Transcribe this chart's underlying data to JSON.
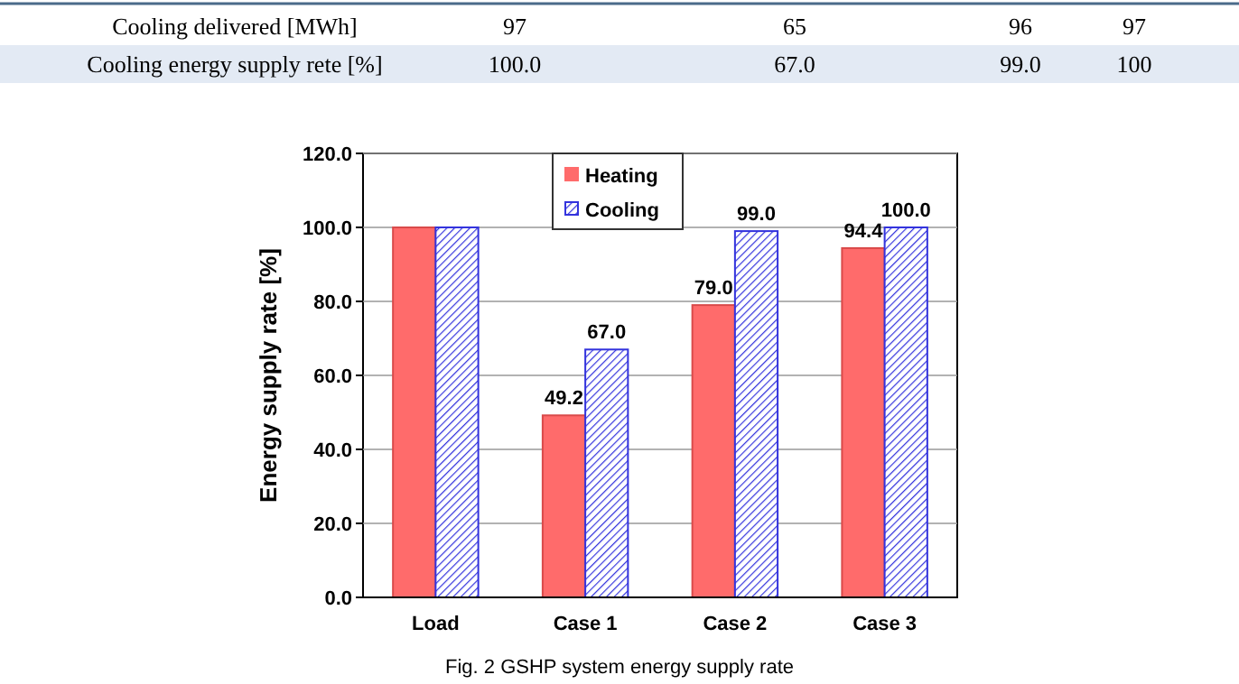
{
  "chart_data": [
    {
      "type": "other",
      "annotations": [
        "Cooling delivered [MWh]",
        "97",
        "65",
        "96",
        "97",
        "Cooling energy supply rete [%]",
        "100.0",
        "67.0",
        "99.0",
        "100"
      ]
    },
    {
      "type": "bar",
      "ylabel": "Energy supply rate  [%]",
      "categories": [
        "Load",
        "Case 1",
        "Case 2",
        "Case 3"
      ],
      "series": [
        {
          "name": "Heating",
          "color": "#ff6b6b",
          "values": [
            100,
            49.2,
            79.0,
            94.4
          ],
          "value_labels": [
            null,
            "49.2",
            "79.0",
            "94.4"
          ]
        },
        {
          "name": "Cooling",
          "color": "#3333dd",
          "values": [
            100,
            67.0,
            99.0,
            100.0
          ],
          "value_labels": [
            null,
            "67.0",
            "99.0",
            "100.0"
          ]
        }
      ],
      "ylim": [
        0,
        120
      ],
      "yticks": [
        {
          "value": 0,
          "label": "0.0"
        },
        {
          "value": 20,
          "label": "20.0"
        },
        {
          "value": 40,
          "label": "40.0"
        },
        {
          "value": 60,
          "label": "60.0"
        },
        {
          "value": 80,
          "label": "80.0"
        },
        {
          "value": 100,
          "label": "100.0"
        },
        {
          "value": 120,
          "label": "120.0"
        }
      ],
      "grid": "y",
      "legend": "top left",
      "annotations": [
        "Fig. 2 GSHP system energy supply rate"
      ]
    }
  ]
}
